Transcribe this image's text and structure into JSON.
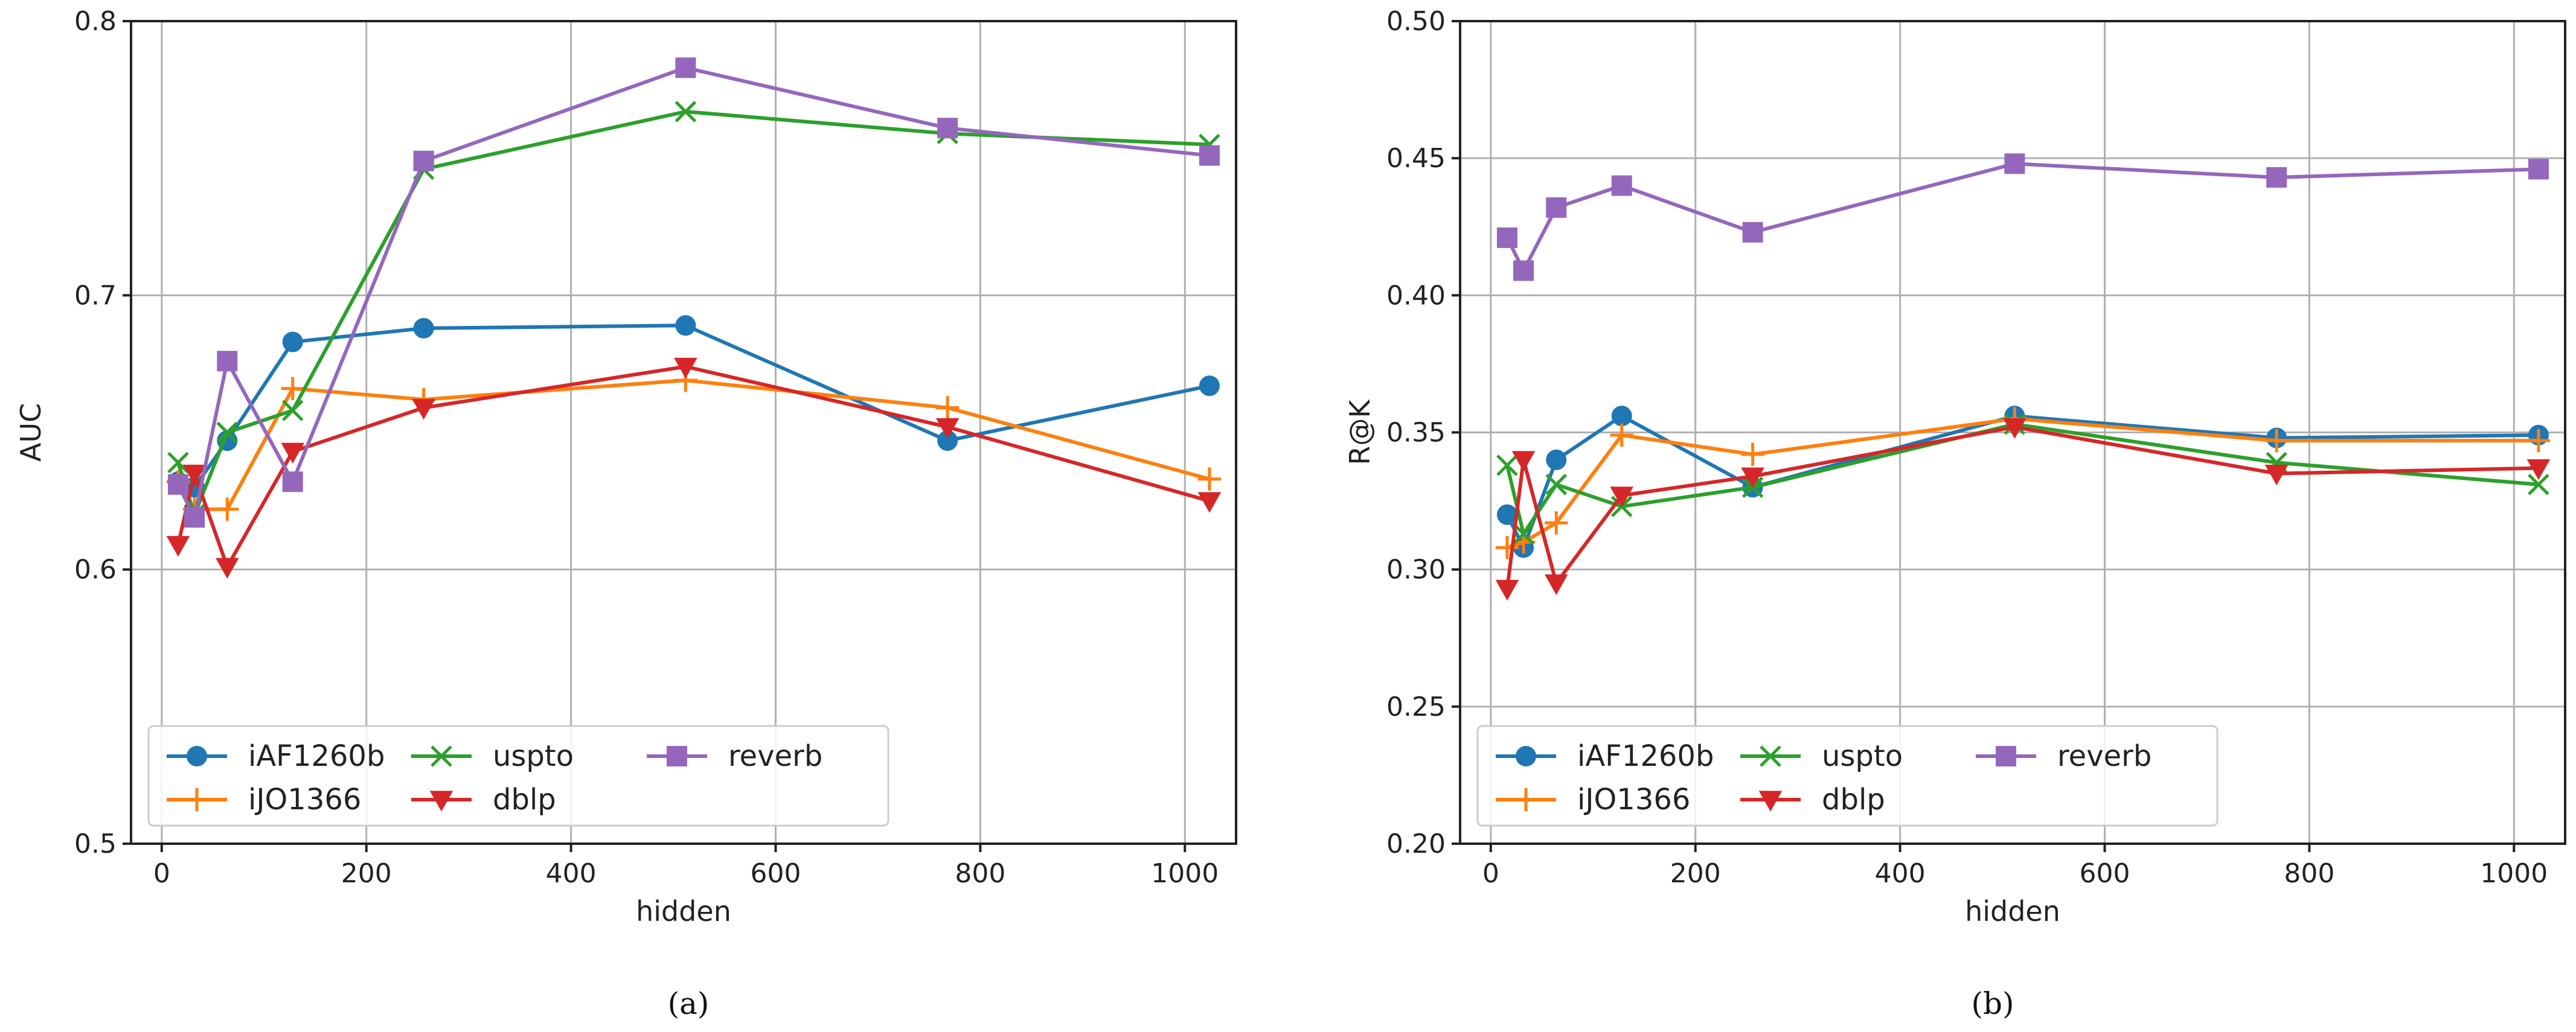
{
  "chart_data": [
    {
      "type": "line",
      "caption": "(a)",
      "xlabel": "hidden",
      "ylabel": "AUC",
      "xlim": [
        -30,
        1050
      ],
      "ylim": [
        0.5,
        0.8
      ],
      "xticks": [
        0,
        200,
        400,
        600,
        800,
        1000
      ],
      "xtick_labels": [
        "0",
        "200",
        "400",
        "600",
        "800",
        "1000"
      ],
      "yticks": [
        0.5,
        0.6,
        0.7,
        0.8
      ],
      "ytick_labels": [
        "0.5",
        "0.6",
        "0.7",
        "0.8"
      ],
      "grid": true,
      "legend_position": "lower-left",
      "x": [
        16,
        32,
        64,
        128,
        256,
        512,
        768,
        1024
      ],
      "series": [
        {
          "name": "iAF1260b",
          "color": "#1f77b4",
          "marker": "circle",
          "values": [
            0.632,
            0.63,
            0.647,
            0.683,
            0.688,
            0.689,
            0.647,
            0.667
          ]
        },
        {
          "name": "iJO1366",
          "color": "#ff7f0e",
          "marker": "plus",
          "values": [
            0.632,
            0.622,
            0.622,
            0.666,
            0.662,
            0.669,
            0.659,
            0.633
          ]
        },
        {
          "name": "uspto",
          "color": "#2ca02c",
          "marker": "x",
          "values": [
            0.639,
            0.62,
            0.65,
            0.658,
            0.746,
            0.767,
            0.759,
            0.755
          ]
        },
        {
          "name": "dblp",
          "color": "#d62728",
          "marker": "triangle-down",
          "values": [
            0.609,
            0.635,
            0.601,
            0.643,
            0.659,
            0.674,
            0.652,
            0.625
          ]
        },
        {
          "name": "reverb",
          "color": "#9467bd",
          "marker": "square",
          "values": [
            0.631,
            0.619,
            0.676,
            0.632,
            0.749,
            0.783,
            0.761,
            0.751
          ]
        }
      ]
    },
    {
      "type": "line",
      "caption": "(b)",
      "xlabel": "hidden",
      "ylabel": "R@K",
      "xlim": [
        -30,
        1050
      ],
      "ylim": [
        0.2,
        0.5
      ],
      "xticks": [
        0,
        200,
        400,
        600,
        800,
        1000
      ],
      "xtick_labels": [
        "0",
        "200",
        "400",
        "600",
        "800",
        "1000"
      ],
      "yticks": [
        0.2,
        0.25,
        0.3,
        0.35,
        0.4,
        0.45,
        0.5
      ],
      "ytick_labels": [
        "0.20",
        "0.25",
        "0.30",
        "0.35",
        "0.40",
        "0.45",
        "0.50"
      ],
      "grid": true,
      "legend_position": "lower-left",
      "x": [
        16,
        32,
        64,
        128,
        256,
        512,
        768,
        1024
      ],
      "series": [
        {
          "name": "iAF1260b",
          "color": "#1f77b4",
          "marker": "circle",
          "values": [
            0.32,
            0.308,
            0.34,
            0.356,
            0.33,
            0.356,
            0.348,
            0.349
          ]
        },
        {
          "name": "iJO1366",
          "color": "#ff7f0e",
          "marker": "plus",
          "values": [
            0.308,
            0.31,
            0.317,
            0.349,
            0.342,
            0.355,
            0.347,
            0.347
          ]
        },
        {
          "name": "uspto",
          "color": "#2ca02c",
          "marker": "x",
          "values": [
            0.338,
            0.313,
            0.331,
            0.323,
            0.33,
            0.353,
            0.339,
            0.331
          ]
        },
        {
          "name": "dblp",
          "color": "#d62728",
          "marker": "triangle-down",
          "values": [
            0.293,
            0.34,
            0.295,
            0.327,
            0.334,
            0.352,
            0.335,
            0.337
          ]
        },
        {
          "name": "reverb",
          "color": "#9467bd",
          "marker": "square",
          "values": [
            0.421,
            0.409,
            0.432,
            0.44,
            0.423,
            0.448,
            0.443,
            0.446
          ]
        }
      ]
    }
  ]
}
